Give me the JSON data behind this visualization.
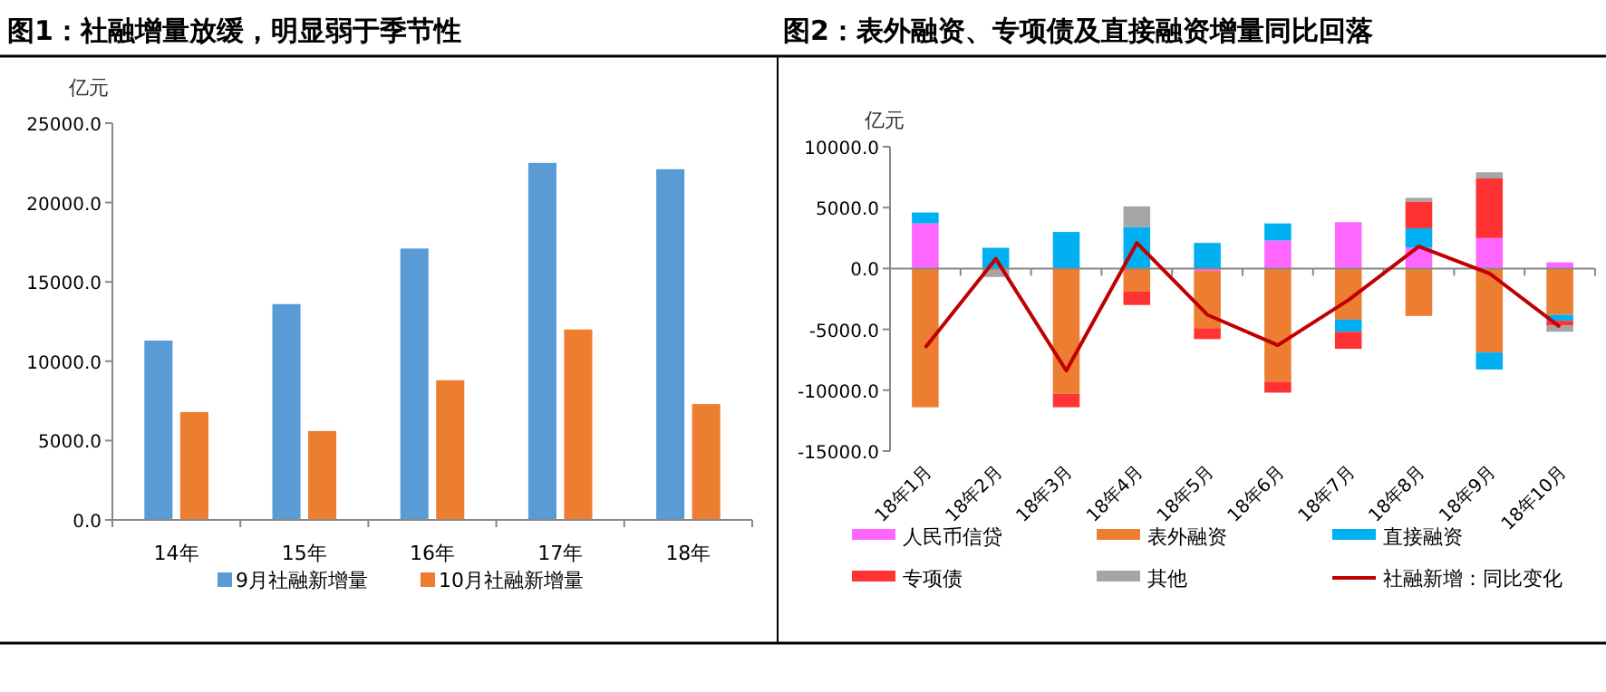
{
  "chart_data": [
    {
      "type": "bar",
      "title": "图1：社融增量放缓，明显弱于季节性",
      "ylabel": "亿元",
      "categories": [
        "14年",
        "15年",
        "16年",
        "17年",
        "18年"
      ],
      "series": [
        {
          "name": "9月社融新增量",
          "color": "#5b9bd5",
          "values": [
            11300,
            13600,
            17100,
            22500,
            22100
          ]
        },
        {
          "name": "10月社融新增量",
          "color": "#ed7d31",
          "values": [
            6800,
            5600,
            8800,
            12000,
            7300
          ]
        }
      ],
      "ylim": [
        0,
        25000
      ],
      "yticks": [
        {
          "value": 0,
          "label": "0.0"
        },
        {
          "value": 5000,
          "label": "5000.0"
        },
        {
          "value": 10000,
          "label": "10000.0"
        },
        {
          "value": 15000,
          "label": "15000.0"
        },
        {
          "value": 20000,
          "label": "20000.0"
        },
        {
          "value": 25000,
          "label": "25000.0"
        }
      ],
      "legend": "bottom"
    },
    {
      "type": "bar",
      "stacked": true,
      "title": "图2：表外融资、专项债及直接融资增量同比回落",
      "ylabel": "亿元",
      "categories": [
        "18年1月",
        "18年2月",
        "18年3月",
        "18年4月",
        "18年5月",
        "18年6月",
        "18年7月",
        "18年8月",
        "18年9月",
        "18年10月"
      ],
      "series": [
        {
          "name": "人民币信贷",
          "color": "#ff66ff",
          "values": [
            3700,
            0,
            0,
            null,
            -200,
            2300,
            3800,
            1700,
            2500,
            500
          ]
        },
        {
          "name": "表外融资",
          "color": "#ed7d31",
          "values": [
            -11400,
            0,
            -10300,
            -1900,
            -4700,
            -9300,
            -4200,
            -3900,
            -6900,
            -3800
          ]
        },
        {
          "name": "直接融资",
          "color": "#00b0f0",
          "values": [
            900,
            1700,
            3000,
            3400,
            2100,
            1400,
            -1000,
            1600,
            -1400,
            -500
          ]
        },
        {
          "name": "专项债",
          "color": "#ff3333",
          "values": [
            0,
            0,
            -1100,
            -1100,
            -900,
            -900,
            -1400,
            2200,
            4900,
            -400
          ]
        },
        {
          "name": "其他",
          "color": "#a5a5a5",
          "values": [
            null,
            -700,
            0,
            1700,
            0,
            null,
            0,
            300,
            500,
            -500
          ]
        },
        {
          "name": "社融新增：同比变化",
          "type": "line",
          "color": "#c00000",
          "values": [
            -6500,
            800,
            -8400,
            2100,
            -3800,
            -6300,
            -2600,
            1800,
            -400,
            -4800
          ]
        }
      ],
      "ylim": [
        -15000,
        10000
      ],
      "yticks": [
        {
          "value": -15000,
          "label": "-15000.0"
        },
        {
          "value": -10000,
          "label": "-10000.0"
        },
        {
          "value": -5000,
          "label": "-5000.0"
        },
        {
          "value": 0,
          "label": "0.0"
        },
        {
          "value": 5000,
          "label": "5000.0"
        },
        {
          "value": 10000,
          "label": "10000.0"
        }
      ],
      "legend": "bottom"
    }
  ]
}
